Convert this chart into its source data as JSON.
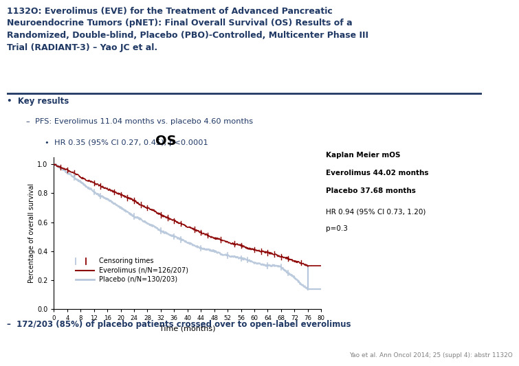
{
  "title_line1": "1132O: Everolimus (EVE) for the Treatment of Advanced Pancreatic",
  "title_line2": "Neuroendocrine Tumors (pNET): Final Overall Survival (OS) Results of a",
  "title_line3": "Randomized, Double-blind, Placebo (PBO)-Controlled, Multicenter Phase III",
  "title_line4": "Trial (RADIANT-3) – Yao JC et al.",
  "bullet1": "•  Key results",
  "bullet2": "–  PFS: Everolimus 11.04 months vs. placebo 4.60 months",
  "bullet3": "•  HR 0.35 (95% CI 0.27, 0.45); p<0.0001",
  "plot_title": "OS",
  "annotation1": "Kaplan Meier mOS",
  "annotation2": "Everolimus 44.02 months",
  "annotation3": "Placebo 37.68 months",
  "annotation4": "HR 0.94 (95% CI 0.73, 1.20)",
  "annotation5": "p=0.3",
  "legend1": "Censoring times",
  "legend2": "Everolimus (n/N=126/207)",
  "legend3": "Placebo (n/N=130/203)",
  "xlabel": "Time (months)",
  "ylabel": "Percentage of overall survival",
  "xticks": [
    0,
    4,
    8,
    12,
    16,
    20,
    24,
    28,
    32,
    36,
    40,
    44,
    48,
    52,
    56,
    60,
    64,
    68,
    72,
    76,
    80
  ],
  "yticks": [
    0.0,
    0.2,
    0.4,
    0.6,
    0.8,
    1.0
  ],
  "footer1": "–  172/203 (85%) of placebo patients crossed over to open-label everolimus",
  "footer2": "Yao et al. Ann Oncol 2014; 25 (suppl 4): abstr 1132O",
  "eve_color": "#8B0000",
  "pbo_color": "#B8C8DC",
  "title_color": "#1F3864",
  "text_color": "#1F3864",
  "bg_color": "#FFFFFF"
}
